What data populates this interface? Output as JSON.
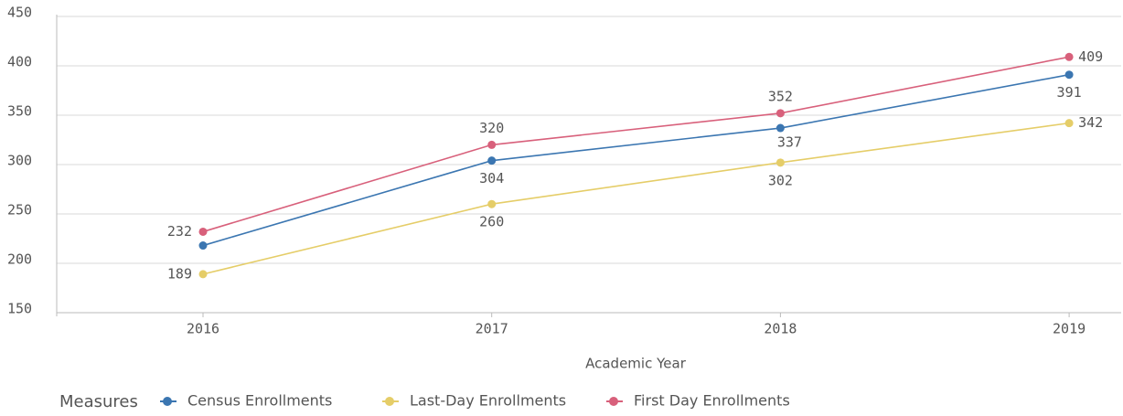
{
  "chart_data": {
    "type": "line",
    "x_label": "Academic Year",
    "legend_title": "Measures",
    "legend": "bottom-left",
    "categories": [
      "2016",
      "2017",
      "2018",
      "2019"
    ],
    "series": [
      {
        "name": "Census Enrollments",
        "color": "#3b76b1",
        "values": [
          218,
          304,
          337,
          391
        ],
        "value_labels": [
          null,
          "304",
          "337",
          "391"
        ]
      },
      {
        "name": "Last-Day Enrollments",
        "color": "#e5cd68",
        "values": [
          189,
          260,
          302,
          342
        ]
      },
      {
        "name": "First Day Enrollments",
        "color": "#d8607b",
        "values": [
          232,
          320,
          352,
          409
        ]
      }
    ],
    "ylim": [
      150,
      450
    ],
    "yticks": [
      150,
      200,
      250,
      300,
      350,
      400,
      450
    ],
    "grid": true
  }
}
